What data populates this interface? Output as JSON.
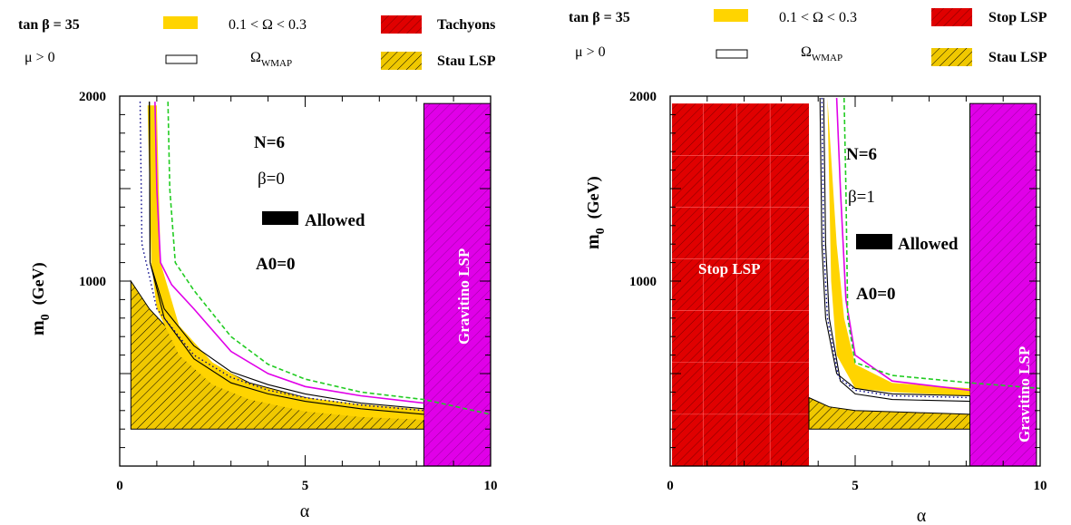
{
  "legend": {
    "tanb_label": "tan β = 35",
    "mu_label": "μ  >  0",
    "omega_band_label": "0.1 < Ω < 0.3",
    "omega_wmap_main": "Ω",
    "omega_wmap_sub": "WMAP",
    "stau_label": "Stau LSP"
  },
  "colors": {
    "omega_band": "#ffd400",
    "stau_fill": "#f0c800",
    "red": "#e00000",
    "magenta": "#e000e8",
    "green_dash": "#22cc22",
    "blue_dot": "#000088"
  },
  "chart_data": [
    {
      "type": "area",
      "legend_red_label": "Tachyons",
      "xlabel": "α",
      "ylabel_main": "m",
      "ylabel_sub": "0",
      "ylabel_unit": "(GeV)",
      "xlim": [
        0,
        10
      ],
      "ylim": [
        0,
        2000
      ],
      "xticks": [
        "0",
        "5",
        "10"
      ],
      "yticks": [
        "1000",
        "2000"
      ],
      "annotations": {
        "n": "N=6",
        "beta": "β=0",
        "allowed": "Allowed",
        "a0": "A0=0",
        "gravitino": "Gravitino LSP"
      },
      "regions": {
        "stau_lsp": [
          [
            0.3,
            1000
          ],
          [
            0.8,
            850
          ],
          [
            1.5,
            700
          ],
          [
            2.5,
            550
          ],
          [
            3.5,
            450
          ],
          [
            5,
            370
          ],
          [
            6.5,
            320
          ],
          [
            8.2,
            290
          ],
          [
            8.2,
            200
          ],
          [
            0.3,
            200
          ]
        ],
        "gravitino_lsp": {
          "x_from": 8.2,
          "x_to": 10,
          "y_top": 1960
        },
        "omega_band": [
          [
            1.0,
            1950
          ],
          [
            1.1,
            1100
          ],
          [
            1.6,
            760
          ],
          [
            2.5,
            560
          ],
          [
            3.5,
            445
          ],
          [
            5,
            370
          ],
          [
            6.5,
            335
          ],
          [
            8.2,
            305
          ],
          [
            8.2,
            250
          ],
          [
            6.5,
            265
          ],
          [
            5,
            295
          ],
          [
            3.5,
            360
          ],
          [
            2.5,
            440
          ],
          [
            1.6,
            600
          ],
          [
            1.0,
            850
          ],
          [
            0.85,
            1100
          ],
          [
            0.75,
            1950
          ]
        ]
      },
      "curves": {
        "magenta": [
          [
            0.95,
            1970
          ],
          [
            1.0,
            1500
          ],
          [
            1.1,
            1100
          ],
          [
            1.4,
            980
          ],
          [
            2.0,
            850
          ],
          [
            3,
            620
          ],
          [
            4,
            500
          ],
          [
            5,
            430
          ],
          [
            6.5,
            380
          ],
          [
            8.2,
            340
          ]
        ],
        "green_dashed": [
          [
            1.3,
            1970
          ],
          [
            1.35,
            1500
          ],
          [
            1.5,
            1100
          ],
          [
            2.0,
            950
          ],
          [
            3,
            700
          ],
          [
            4,
            550
          ],
          [
            5,
            470
          ],
          [
            6.5,
            400
          ],
          [
            8.2,
            360
          ],
          [
            10,
            280
          ]
        ],
        "black_upper": [
          [
            0.8,
            1970
          ],
          [
            0.82,
            1100
          ],
          [
            1.2,
            850
          ],
          [
            2,
            650
          ],
          [
            3,
            510
          ],
          [
            4,
            440
          ],
          [
            5,
            390
          ],
          [
            6.5,
            340
          ],
          [
            8.2,
            310
          ]
        ],
        "black_lower": [
          [
            0.8,
            1970
          ],
          [
            0.82,
            1100
          ],
          [
            1.2,
            800
          ],
          [
            2,
            580
          ],
          [
            3,
            450
          ],
          [
            4,
            390
          ],
          [
            5,
            350
          ],
          [
            6.5,
            310
          ],
          [
            8.2,
            280
          ]
        ],
        "blue_dotted": [
          [
            0.55,
            1970
          ],
          [
            0.6,
            1200
          ],
          [
            1.0,
            850
          ],
          [
            2,
            600
          ],
          [
            3,
            480
          ],
          [
            4,
            410
          ],
          [
            5,
            370
          ],
          [
            6.5,
            330
          ],
          [
            8.2,
            300
          ]
        ]
      }
    },
    {
      "type": "area",
      "legend_red_label": "Stop LSP",
      "xlabel": "α",
      "ylabel_main": "m",
      "ylabel_sub": "0",
      "ylabel_unit": "(GeV)",
      "xlim": [
        0,
        10
      ],
      "ylim": [
        0,
        2000
      ],
      "xticks": [
        "0",
        "5",
        "10"
      ],
      "yticks": [
        "1000",
        "2000"
      ],
      "annotations": {
        "n": "N=6",
        "beta": "β=1",
        "allowed": "Allowed",
        "a0": "A0=0",
        "gravitino": "Gravitino LSP",
        "stop": "Stop LSP"
      },
      "regions": {
        "stop_lsp": {
          "x_from": 0.05,
          "x_to": 3.75,
          "y_top": 1960
        },
        "stau_lsp": [
          [
            3.75,
            370
          ],
          [
            4.3,
            320
          ],
          [
            5,
            300
          ],
          [
            6.5,
            290
          ],
          [
            8.1,
            280
          ],
          [
            8.1,
            200
          ],
          [
            3.75,
            200
          ]
        ],
        "gravitino_lsp": {
          "x_from": 8.1,
          "x_to": 9.9,
          "y_top": 1960
        },
        "omega_band": [
          [
            4.25,
            1990
          ],
          [
            4.5,
            1200
          ],
          [
            4.7,
            800
          ],
          [
            5,
            550
          ],
          [
            6,
            450
          ],
          [
            8.1,
            420
          ],
          [
            8.1,
            380
          ],
          [
            6,
            400
          ],
          [
            5,
            420
          ],
          [
            4.5,
            600
          ],
          [
            4.35,
            1000
          ],
          [
            4.25,
            1990
          ]
        ]
      },
      "curves": {
        "magenta": [
          [
            4.5,
            1990
          ],
          [
            4.6,
            1500
          ],
          [
            4.75,
            900
          ],
          [
            5,
            600
          ],
          [
            6,
            460
          ],
          [
            8.1,
            410
          ]
        ],
        "green_dashed": [
          [
            4.7,
            1990
          ],
          [
            4.75,
            1500
          ],
          [
            4.8,
            800
          ],
          [
            5,
            560
          ],
          [
            6,
            490
          ],
          [
            8.1,
            450
          ],
          [
            10,
            420
          ]
        ],
        "black_upper": [
          [
            4.05,
            1990
          ],
          [
            4.1,
            1200
          ],
          [
            4.2,
            800
          ],
          [
            4.5,
            500
          ],
          [
            5,
            420
          ],
          [
            6,
            390
          ],
          [
            8.1,
            380
          ]
        ],
        "black_lower": [
          [
            4.15,
            1990
          ],
          [
            4.2,
            1200
          ],
          [
            4.3,
            800
          ],
          [
            4.6,
            460
          ],
          [
            5,
            390
          ],
          [
            6,
            360
          ],
          [
            8.1,
            350
          ]
        ],
        "blue_dotted": [
          [
            4.1,
            1990
          ],
          [
            4.15,
            1200
          ],
          [
            4.25,
            800
          ],
          [
            4.55,
            480
          ],
          [
            5,
            410
          ],
          [
            6,
            380
          ],
          [
            8.1,
            370
          ]
        ]
      }
    }
  ]
}
